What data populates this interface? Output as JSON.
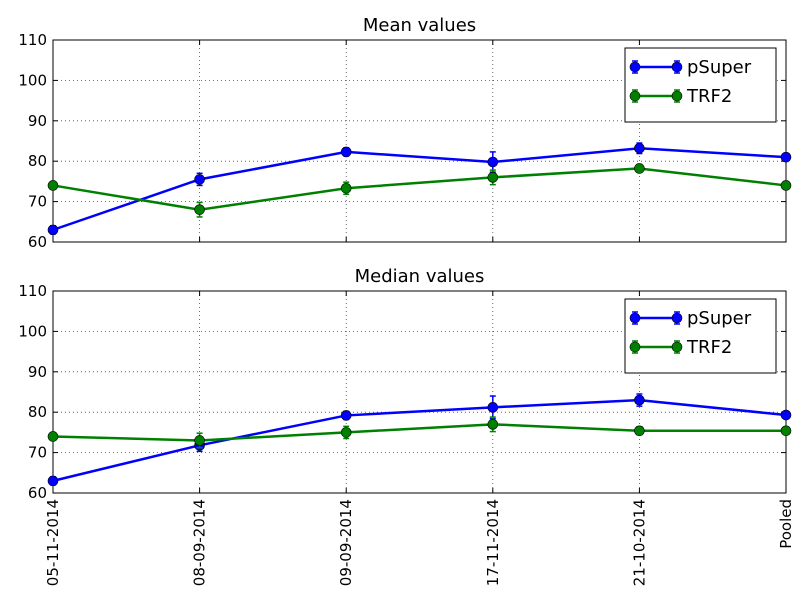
{
  "chart_data": [
    {
      "type": "line",
      "title": "Mean values",
      "categories": [
        "05-11-2014",
        "08-09-2014",
        "09-09-2014",
        "17-11-2014",
        "21-10-2014",
        "Pooled"
      ],
      "ylim": [
        60,
        110
      ],
      "yticks": [
        60,
        70,
        80,
        90,
        100,
        110
      ],
      "grid": true,
      "legend_position": "top-right",
      "series": [
        {
          "name": "pSuper",
          "color": "#0000ff",
          "values": [
            63,
            75.5,
            82.3,
            79.8,
            83.2,
            81
          ],
          "errors": [
            1.0,
            1.5,
            1.0,
            2.5,
            1.3,
            0.8
          ]
        },
        {
          "name": "TRF2",
          "color": "#008000",
          "values": [
            74,
            68,
            73.3,
            76,
            78.2,
            74
          ],
          "errors": [
            0.8,
            1.8,
            1.5,
            1.8,
            0.8,
            0.8
          ]
        }
      ]
    },
    {
      "type": "line",
      "title": "Median values",
      "categories": [
        "05-11-2014",
        "08-09-2014",
        "09-09-2014",
        "17-11-2014",
        "21-10-2014",
        "Pooled"
      ],
      "ylim": [
        60,
        110
      ],
      "yticks": [
        60,
        70,
        80,
        90,
        100,
        110
      ],
      "grid": true,
      "legend_position": "top-right",
      "series": [
        {
          "name": "pSuper",
          "color": "#0000ff",
          "values": [
            63,
            71.8,
            79.2,
            81.2,
            83,
            79.3
          ],
          "errors": [
            1.0,
            1.5,
            1.0,
            2.8,
            1.5,
            0.8
          ]
        },
        {
          "name": "TRF2",
          "color": "#008000",
          "values": [
            74,
            73,
            75,
            77,
            75.4,
            75.4
          ],
          "errors": [
            0.8,
            1.8,
            1.5,
            1.8,
            1.0,
            0.8
          ]
        }
      ]
    }
  ]
}
